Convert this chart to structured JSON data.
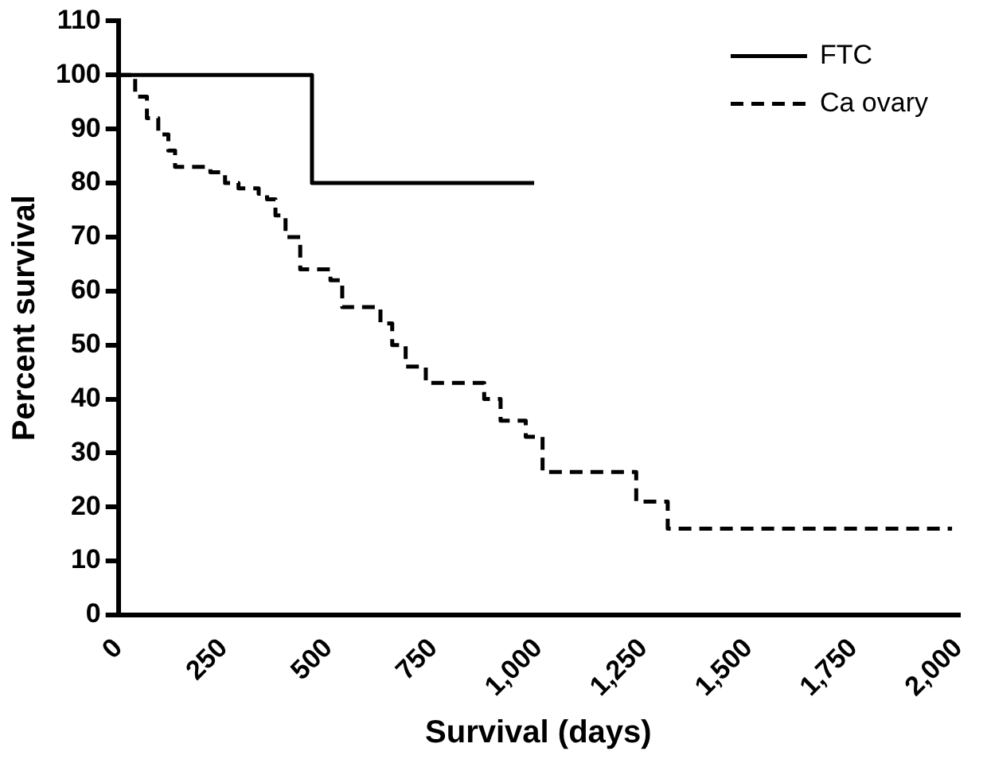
{
  "chart_data": {
    "type": "step",
    "xlabel": "Survival (days)",
    "ylabel": "Percent survival",
    "xlim": [
      0,
      2000
    ],
    "ylim": [
      0,
      110
    ],
    "xticks": [
      0,
      250,
      500,
      750,
      {
        "value": 1000,
        "label": "1,000"
      },
      {
        "value": 1250,
        "label": "1,250"
      },
      {
        "value": 1500,
        "label": "1,500"
      },
      {
        "value": 1750,
        "label": "1,750"
      },
      {
        "value": 2000,
        "label": "2,000"
      }
    ],
    "yticks": [
      0,
      10,
      20,
      30,
      40,
      50,
      60,
      70,
      80,
      90,
      100,
      110
    ],
    "grid": false,
    "legend": "top right",
    "marker": "none",
    "series": [
      {
        "name": "FTC",
        "color": "#000000",
        "line_style": "solid",
        "x": [
          0,
          461,
          990
        ],
        "values": [
          100,
          80,
          80
        ]
      },
      {
        "name": "Ca ovary",
        "color": "#000000",
        "line_style": "dashed",
        "x": [
          0,
          40,
          68,
          95,
          119,
          135,
          219,
          254,
          286,
          334,
          354,
          374,
          398,
          433,
          505,
          533,
          624,
          652,
          684,
          732,
          871,
          910,
          970,
          1010,
          1233,
          1308,
          1985
        ],
        "values": [
          100,
          96,
          92,
          89,
          86,
          83,
          82,
          80,
          79,
          78,
          77,
          74,
          70,
          64,
          62,
          57,
          54,
          50,
          46,
          43,
          40,
          36,
          33,
          26.5,
          21,
          16,
          16
        ]
      }
    ]
  }
}
